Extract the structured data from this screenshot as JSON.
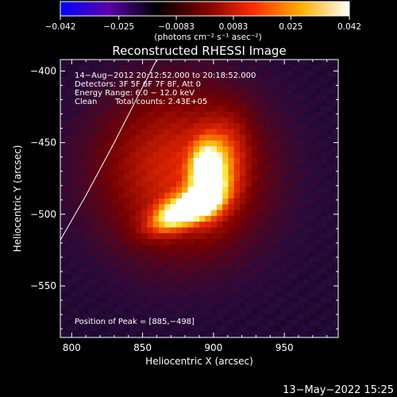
{
  "colors": {
    "background": "#000000",
    "text": "#ffffff",
    "limb": "#ffffff"
  },
  "colorbar": {
    "ticks": [
      "−0.042",
      "−0.025",
      "−0.0083",
      "0.0083",
      "0.025",
      "0.042"
    ],
    "values": [
      -0.042,
      -0.025,
      -0.0083,
      0.0083,
      0.025,
      0.042
    ],
    "range": [
      -0.042,
      0.042
    ],
    "stops": [
      "#0000ff",
      "#5a00a8",
      "#000000",
      "#7a0000",
      "#ff2a00",
      "#ffb000",
      "#ffffff"
    ],
    "units": "(photons cm⁻² s⁻¹ asec⁻²)"
  },
  "annotations": {
    "time": "14−Aug−2012 20:12:52.000 to 20:18:52.000",
    "detectors": "Detectors: 3F 5F 6F 7F 8F, Att 0",
    "energy": "Energy Range: 6.0 − 12.0 keV",
    "clean_label": "Clean",
    "counts": "Total counts: 2.43E+05",
    "peak": "Position of Peak = [885,−498]"
  },
  "footer": {
    "timestamp": "13−May−2022 15:25"
  },
  "chart_data": {
    "type": "heatmap",
    "title": "Reconstructed RHESSI Image",
    "xlabel": "Heliocentric X (arcsec)",
    "ylabel": "Heliocentric Y (arcsec)",
    "xlim": [
      792,
      988
    ],
    "ylim": [
      -586,
      -392
    ],
    "xticks": [
      800,
      850,
      900,
      950
    ],
    "yticks": [
      -400,
      -450,
      -500,
      -550
    ],
    "xtick_labels": [
      "800",
      "850",
      "900",
      "950"
    ],
    "ytick_labels": [
      "−400",
      "−450",
      "−500",
      "−550"
    ],
    "peak": [
      885,
      -498
    ],
    "limb": [
      [
        792,
        -518
      ],
      [
        810,
        -487
      ],
      [
        830,
        -450
      ],
      [
        845,
        -421
      ],
      [
        860,
        -392
      ]
    ],
    "sources": [
      {
        "x": 880,
        "y": -497,
        "sx": 16,
        "sy": 7,
        "rot": 25,
        "amp": 1.0
      },
      {
        "x": 895,
        "y": -474,
        "sx": 7,
        "sy": 14,
        "rot": 0,
        "amp": 0.95
      },
      {
        "x": 877,
        "y": -470,
        "sx": 40,
        "sy": 40,
        "rot": 0,
        "amp": 0.42
      },
      {
        "x": 905,
        "y": -468,
        "sx": 11,
        "sy": 22,
        "rot": -10,
        "amp": 0.35
      }
    ],
    "background_level": 0.12
  }
}
